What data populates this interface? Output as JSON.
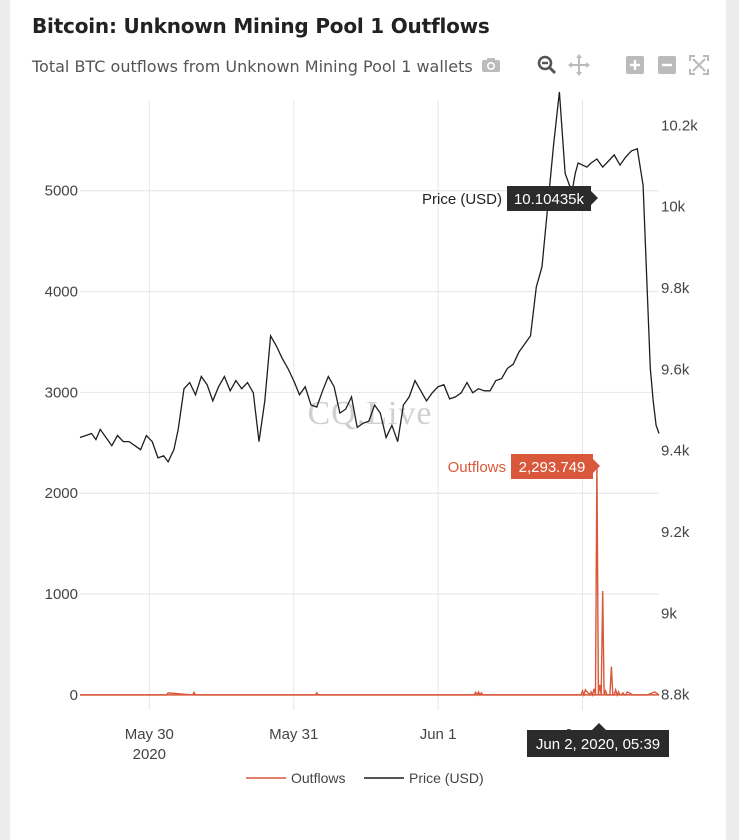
{
  "title": "Bitcoin: Unknown Mining Pool 1 Outflows",
  "subtitle": "Total BTC outflows from Unknown Mining Pool 1 wallets",
  "watermark": "CQ.Live",
  "modebar": [
    "camera-icon",
    "zoom-icon",
    "pan-icon",
    "zoom-in-icon",
    "zoom-out-icon",
    "autoscale-icon"
  ],
  "hover": {
    "price_label": "Price (USD)",
    "price_value": "10.10435k",
    "outflow_label": "Outflows",
    "outflow_value": "2,293.749",
    "x_value": "Jun 2, 2020, 05:39"
  },
  "colors": {
    "outflows": "#d9583b",
    "price": "#1f1f1f",
    "grid": "#e6e6e6",
    "price_hover_bg": "#2b2b2b",
    "outflow_hover_bg": "#d9583b"
  },
  "chart_data": {
    "type": "line",
    "x_tick_labels": [
      "May 30\n2020",
      "May 31",
      "Jun 1",
      "Jun 2"
    ],
    "x_ticks_days": [
      30,
      31,
      32,
      33
    ],
    "xlim_days": [
      29.52,
      33.53
    ],
    "y_left": {
      "ticks": [
        0,
        1000,
        2000,
        3000,
        4000,
        5000
      ],
      "lim": [
        -150,
        5900
      ]
    },
    "y_right": {
      "tick_labels": [
        "8.8k",
        "9k",
        "9.2k",
        "9.4k",
        "9.6k",
        "9.8k",
        "10k",
        "10.2k"
      ],
      "ticks": [
        8800,
        9000,
        9200,
        9400,
        9600,
        9800,
        10000,
        10200
      ],
      "lim": [
        8760,
        10260
      ]
    },
    "grid": true,
    "legend_position": "bottom",
    "series": [
      {
        "name": "Outflows",
        "axis": "left",
        "x": [
          29.52,
          30.12,
          30.13,
          30.3,
          30.31,
          30.32,
          31.15,
          31.16,
          31.17,
          32.25,
          32.26,
          32.27,
          32.28,
          32.29,
          32.3,
          32.31,
          32.32,
          32.99,
          33.0,
          33.01,
          33.02,
          33.05,
          33.06,
          33.07,
          33.08,
          33.09,
          33.1,
          33.11,
          33.12,
          33.13,
          33.14,
          33.15,
          33.16,
          33.17,
          33.18,
          33.19,
          33.2,
          33.21,
          33.22,
          33.23,
          33.24,
          33.25,
          33.26,
          33.27,
          33.28,
          33.29,
          33.3,
          33.31,
          33.35,
          33.4,
          33.45,
          33.5,
          33.53
        ],
        "y": [
          0,
          0,
          20,
          0,
          25,
          0,
          0,
          20,
          0,
          0,
          25,
          0,
          30,
          0,
          20,
          0,
          0,
          0,
          40,
          0,
          50,
          0,
          30,
          0,
          60,
          0,
          2293.749,
          0,
          100,
          0,
          1030,
          0,
          40,
          0,
          0,
          0,
          280,
          0,
          0,
          50,
          0,
          30,
          0,
          0,
          20,
          0,
          0,
          30,
          0,
          0,
          0,
          30,
          0
        ]
      },
      {
        "name": "Price (USD)",
        "axis": "right",
        "x": [
          29.52,
          29.56,
          29.6,
          29.63,
          29.66,
          29.7,
          29.74,
          29.78,
          29.82,
          29.86,
          29.9,
          29.94,
          29.98,
          30.02,
          30.06,
          30.1,
          30.13,
          30.17,
          30.2,
          30.24,
          30.28,
          30.32,
          30.36,
          30.4,
          30.44,
          30.48,
          30.52,
          30.56,
          30.6,
          30.64,
          30.68,
          30.72,
          30.76,
          30.8,
          30.84,
          30.88,
          30.92,
          30.96,
          31.0,
          31.04,
          31.08,
          31.12,
          31.16,
          31.2,
          31.24,
          31.28,
          31.32,
          31.36,
          31.4,
          31.44,
          31.48,
          31.52,
          31.56,
          31.6,
          31.64,
          31.68,
          31.72,
          31.76,
          31.8,
          31.84,
          31.88,
          31.92,
          31.96,
          32.0,
          32.04,
          32.08,
          32.12,
          32.16,
          32.2,
          32.24,
          32.28,
          32.32,
          32.36,
          32.4,
          32.44,
          32.48,
          32.52,
          32.56,
          32.6,
          32.64,
          32.68,
          32.72,
          32.76,
          32.8,
          32.84,
          32.88,
          32.91,
          32.93,
          32.95,
          32.97,
          33.0,
          33.03,
          33.06,
          33.1,
          33.14,
          33.18,
          33.22,
          33.26,
          33.3,
          33.34,
          33.38,
          33.42,
          33.45,
          33.47,
          33.49,
          33.51,
          33.52,
          33.53
        ],
        "y": [
          9430,
          9435,
          9440,
          9425,
          9450,
          9430,
          9410,
          9435,
          9420,
          9420,
          9410,
          9400,
          9435,
          9420,
          9380,
          9385,
          9370,
          9400,
          9450,
          9550,
          9565,
          9535,
          9580,
          9560,
          9520,
          9555,
          9580,
          9545,
          9570,
          9550,
          9565,
          9540,
          9420,
          9520,
          9680,
          9655,
          9625,
          9600,
          9570,
          9535,
          9555,
          9510,
          9505,
          9545,
          9580,
          9555,
          9490,
          9500,
          9530,
          9455,
          9465,
          9470,
          9510,
          9490,
          9430,
          9460,
          9420,
          9510,
          9530,
          9570,
          9545,
          9520,
          9540,
          9555,
          9560,
          9525,
          9530,
          9540,
          9565,
          9540,
          9550,
          9545,
          9545,
          9570,
          9575,
          9600,
          9610,
          9640,
          9660,
          9680,
          9800,
          9850,
          10000,
          10150,
          10280,
          10080,
          10050,
          10040,
          10080,
          10105,
          10100,
          10095,
          10105,
          10115,
          10095,
          10110,
          10125,
          10100,
          10120,
          10135,
          10140,
          10050,
          9780,
          9600,
          9520,
          9460,
          9450,
          9440
        ]
      }
    ]
  },
  "legend": {
    "outflows_label": "Outflows",
    "price_label": "Price (USD)"
  }
}
